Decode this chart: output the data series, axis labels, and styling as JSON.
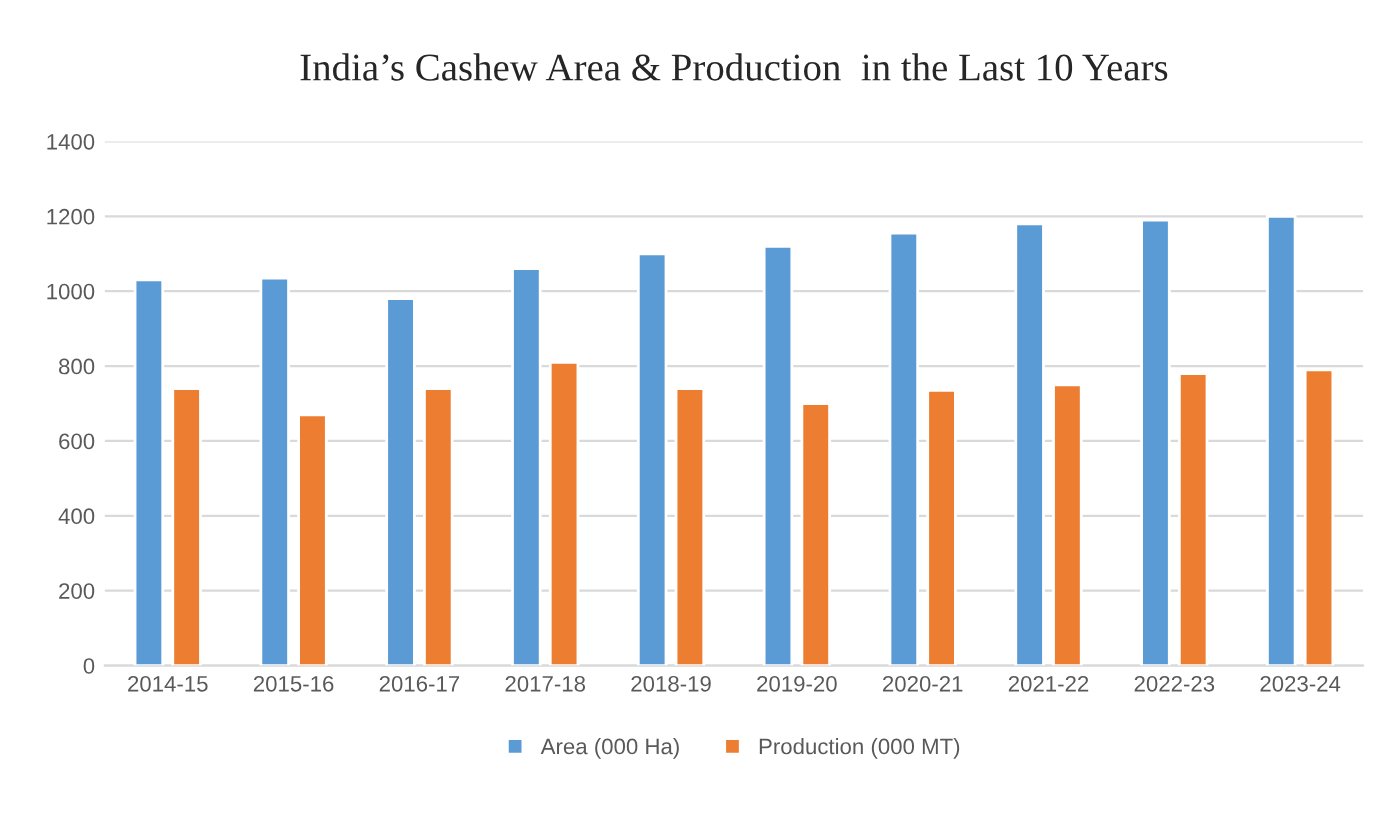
{
  "chart_data": {
    "type": "bar",
    "title": "India’s Cashew Area & Production  in the Last 10 Years",
    "categories": [
      "2014-15",
      "2015-16",
      "2016-17",
      "2017-18",
      "2018-19",
      "2019-20",
      "2020-21",
      "2021-22",
      "2022-23",
      "2023-24"
    ],
    "series": [
      {
        "name": "Area (000 Ha)",
        "color": "#5b9bd5",
        "values": [
          1030,
          1035,
          980,
          1060,
          1100,
          1120,
          1155,
          1180,
          1190,
          1200
        ]
      },
      {
        "name": "Production (000 MT)",
        "color": "#ed7d31",
        "values": [
          740,
          670,
          740,
          810,
          740,
          700,
          735,
          750,
          780,
          790
        ]
      }
    ],
    "ylim": [
      0,
      1400
    ],
    "yticks": [
      0,
      200,
      400,
      600,
      800,
      1000,
      1200,
      1400
    ],
    "grid": "y",
    "legend": "bottom"
  }
}
